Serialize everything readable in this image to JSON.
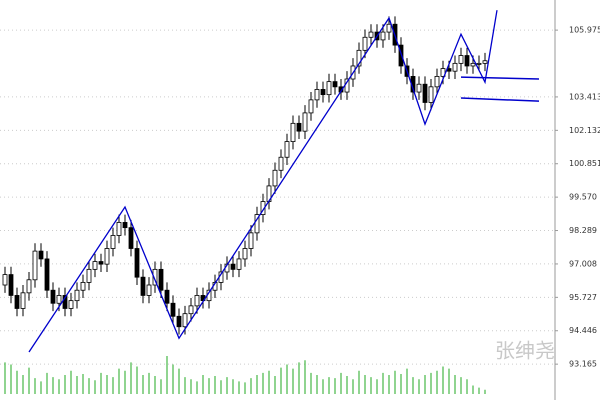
{
  "chart_data": {
    "type": "candlestick",
    "annotation": "张绅尧",
    "ylim": [
      91.79,
      107.13
    ],
    "yticks": [
      105.975,
      103.413,
      102.132,
      100.851,
      {
        "value": 99.57,
        "label": "99.570"
      },
      98.289,
      97.008,
      95.727,
      94.446,
      93.165
    ],
    "grid": true,
    "up_color": "#ffffff",
    "down_color": "#000000",
    "volume_color": "#22aa22",
    "line_color": "#0000cc",
    "open": [
      96.2,
      96.6,
      95.8,
      95.3,
      95.9,
      96.4,
      97.5,
      97.2,
      96.0,
      95.5,
      95.8,
      95.3,
      95.6,
      96.0,
      96.3,
      96.8,
      97.1,
      97.0,
      97.6,
      98.1,
      98.6,
      98.4,
      97.6,
      96.5,
      95.8,
      96.2,
      96.8,
      96.0,
      95.5,
      95.0,
      94.6,
      95.1,
      95.4,
      95.8,
      95.6,
      96.0,
      96.3,
      96.7,
      97.0,
      96.8,
      97.2,
      97.6,
      98.2,
      98.9,
      99.4,
      100.0,
      100.6,
      101.1,
      101.7,
      102.4,
      102.1,
      102.8,
      103.3,
      103.7,
      103.5,
      104.0,
      103.8,
      103.6,
      104.1,
      104.6,
      105.2,
      105.7,
      105.9,
      105.6,
      105.9,
      106.2,
      105.4,
      104.6,
      104.2,
      103.6,
      103.9,
      103.2,
      103.8,
      104.2,
      104.5,
      104.4,
      104.7,
      105.0,
      104.6,
      104.7,
      104.7
    ],
    "high": [
      96.9,
      96.9,
      96.1,
      96.2,
      96.7,
      97.8,
      97.8,
      97.5,
      96.3,
      96.1,
      96.1,
      95.9,
      96.3,
      96.6,
      97.1,
      97.4,
      97.4,
      97.9,
      98.4,
      98.9,
      98.9,
      98.7,
      97.9,
      96.8,
      96.5,
      97.1,
      97.1,
      96.3,
      95.8,
      95.3,
      95.4,
      95.7,
      96.1,
      96.1,
      96.3,
      96.6,
      97.0,
      97.3,
      97.3,
      97.5,
      97.9,
      98.5,
      99.2,
      99.7,
      100.3,
      100.9,
      101.4,
      102.0,
      102.7,
      102.7,
      103.1,
      103.6,
      104.0,
      104.0,
      104.3,
      104.3,
      104.1,
      104.4,
      104.9,
      105.5,
      106.0,
      106.2,
      106.2,
      106.2,
      106.5,
      106.5,
      105.7,
      104.9,
      104.5,
      104.2,
      104.2,
      104.1,
      104.5,
      104.8,
      104.8,
      105.0,
      105.3,
      105.3,
      105.0,
      105.0,
      105.1
    ],
    "low": [
      95.9,
      95.5,
      95.0,
      95.0,
      95.6,
      96.1,
      96.9,
      95.7,
      95.2,
      95.2,
      95.0,
      95.0,
      95.3,
      95.7,
      96.0,
      96.5,
      96.7,
      96.7,
      97.3,
      97.8,
      98.1,
      97.3,
      96.2,
      95.5,
      95.5,
      95.9,
      95.7,
      95.2,
      94.7,
      94.3,
      94.3,
      94.8,
      95.1,
      95.3,
      95.3,
      95.7,
      96.0,
      96.4,
      96.5,
      96.5,
      96.9,
      97.3,
      97.9,
      98.6,
      99.1,
      99.7,
      100.3,
      100.8,
      101.4,
      101.8,
      101.8,
      102.5,
      103.0,
      103.2,
      103.2,
      103.5,
      103.3,
      103.3,
      103.8,
      104.3,
      104.9,
      105.4,
      105.3,
      105.3,
      105.6,
      105.1,
      104.3,
      103.9,
      103.3,
      103.3,
      102.9,
      102.9,
      103.5,
      103.9,
      104.1,
      104.1,
      104.4,
      104.3,
      104.3,
      104.4,
      104.4
    ],
    "close": [
      96.6,
      95.8,
      95.3,
      95.9,
      96.4,
      97.5,
      97.2,
      96.0,
      95.5,
      95.8,
      95.3,
      95.6,
      96.0,
      96.3,
      96.8,
      97.1,
      97.0,
      97.6,
      98.1,
      98.6,
      98.4,
      97.6,
      96.5,
      95.8,
      96.2,
      96.8,
      96.0,
      95.5,
      95.0,
      94.6,
      95.1,
      95.4,
      95.8,
      95.6,
      96.0,
      96.3,
      96.7,
      97.0,
      96.8,
      97.2,
      97.6,
      98.2,
      98.9,
      99.4,
      100.0,
      100.6,
      101.1,
      101.7,
      102.4,
      102.1,
      102.8,
      103.3,
      103.7,
      103.5,
      104.0,
      103.8,
      103.6,
      104.1,
      104.6,
      105.2,
      105.7,
      105.9,
      105.6,
      105.9,
      106.2,
      105.4,
      104.6,
      104.2,
      103.6,
      103.9,
      103.2,
      103.8,
      104.2,
      104.5,
      104.4,
      104.7,
      105.0,
      104.6,
      104.7,
      104.7,
      104.8
    ],
    "volume": [
      30,
      28,
      22,
      18,
      25,
      15,
      12,
      20,
      16,
      14,
      18,
      22,
      17,
      19,
      15,
      13,
      20,
      18,
      16,
      24,
      22,
      30,
      26,
      18,
      20,
      17,
      14,
      36,
      28,
      24,
      16,
      14,
      12,
      18,
      15,
      17,
      13,
      16,
      14,
      12,
      11,
      15,
      18,
      20,
      22,
      17,
      25,
      28,
      24,
      30,
      32,
      20,
      18,
      14,
      16,
      15,
      20,
      17,
      14,
      22,
      18,
      16,
      14,
      20,
      18,
      22,
      19,
      24,
      16,
      14,
      18,
      20,
      22,
      26,
      24,
      18,
      16,
      14,
      8,
      6,
      4
    ],
    "zigzag": {
      "x": [
        4,
        20,
        29,
        64,
        70,
        76,
        80,
        82
      ],
      "y": [
        93.63,
        99.19,
        94.16,
        106.44,
        102.37,
        105.82,
        103.98,
        106.74
      ]
    },
    "lines": [
      {
        "x": [
          76,
          89
        ],
        "y": [
          104.17,
          104.1
        ]
      },
      {
        "x": [
          76,
          89
        ],
        "y": [
          103.37,
          103.25
        ]
      }
    ]
  }
}
